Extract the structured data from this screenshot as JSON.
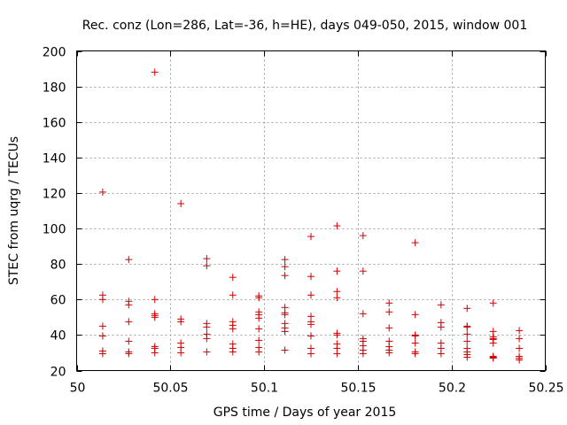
{
  "chart_data": {
    "type": "scatter",
    "title": "Rec. conz (Lon=286, Lat=-36, h=HE), days 049-050, 2015, window 001",
    "xlabel": "GPS time / Days of year 2015",
    "ylabel": "STEC from uqrg / TECUs",
    "xlim": [
      50,
      50.25
    ],
    "ylim": [
      20,
      200
    ],
    "xticks": [
      50,
      50.05,
      50.1,
      50.15,
      50.2,
      50.25
    ],
    "xtick_labels": [
      "50",
      "50.05",
      "50.1",
      "50.15",
      "50.2",
      "50.25"
    ],
    "yticks": [
      20,
      40,
      60,
      80,
      100,
      120,
      140,
      160,
      180,
      200
    ],
    "ytick_labels": [
      "20",
      "40",
      "60",
      "80",
      "100",
      "120",
      "140",
      "160",
      "180",
      "200"
    ],
    "grid": true,
    "marker": "plus",
    "color": "#cc0000",
    "series": [
      {
        "points": [
          [
            50.0139,
            120.5
          ],
          [
            50.0139,
            62.5
          ],
          [
            50.0139,
            60.0
          ],
          [
            50.0139,
            45.0
          ],
          [
            50.0139,
            39.5
          ],
          [
            50.0139,
            31.0
          ],
          [
            50.0139,
            29.5
          ],
          [
            50.0278,
            82.5
          ],
          [
            50.0278,
            59.0
          ],
          [
            50.0278,
            57.0
          ],
          [
            50.0278,
            47.5
          ],
          [
            50.0278,
            36.5
          ],
          [
            50.0278,
            30.5
          ],
          [
            50.0278,
            29.5
          ],
          [
            50.0417,
            188.0
          ],
          [
            50.0417,
            60.0
          ],
          [
            50.0417,
            52.0
          ],
          [
            50.0417,
            51.0
          ],
          [
            50.0417,
            50.0
          ],
          [
            50.0417,
            33.5
          ],
          [
            50.0417,
            32.5
          ],
          [
            50.0417,
            30.0
          ],
          [
            50.0556,
            114.0
          ],
          [
            50.0556,
            49.0
          ],
          [
            50.0556,
            47.5
          ],
          [
            50.0556,
            35.5
          ],
          [
            50.0556,
            33.0
          ],
          [
            50.0556,
            30.0
          ],
          [
            50.0694,
            83.0
          ],
          [
            50.0694,
            79.0
          ],
          [
            50.0694,
            46.5
          ],
          [
            50.0694,
            44.5
          ],
          [
            50.0694,
            40.5
          ],
          [
            50.0694,
            38.0
          ],
          [
            50.0694,
            30.5
          ],
          [
            50.0833,
            72.5
          ],
          [
            50.0833,
            62.5
          ],
          [
            50.0833,
            47.5
          ],
          [
            50.0833,
            45.5
          ],
          [
            50.0833,
            43.5
          ],
          [
            50.0833,
            35.0
          ],
          [
            50.0833,
            32.5
          ],
          [
            50.0833,
            30.5
          ],
          [
            50.0972,
            62.0
          ],
          [
            50.0972,
            61.0
          ],
          [
            50.0972,
            53.0
          ],
          [
            50.0972,
            51.5
          ],
          [
            50.0972,
            49.5
          ],
          [
            50.0972,
            43.5
          ],
          [
            50.0972,
            37.0
          ],
          [
            50.0972,
            33.0
          ],
          [
            50.0972,
            30.5
          ],
          [
            50.1111,
            82.5
          ],
          [
            50.1111,
            78.5
          ],
          [
            50.1111,
            73.5
          ],
          [
            50.1111,
            55.5
          ],
          [
            50.1111,
            52.5
          ],
          [
            50.1111,
            51.5
          ],
          [
            50.1111,
            46.5
          ],
          [
            50.1111,
            44.0
          ],
          [
            50.1111,
            42.0
          ],
          [
            50.1111,
            31.5
          ],
          [
            50.125,
            95.5
          ],
          [
            50.125,
            73.0
          ],
          [
            50.125,
            62.5
          ],
          [
            50.125,
            50.5
          ],
          [
            50.125,
            47.5
          ],
          [
            50.125,
            46.0
          ],
          [
            50.125,
            39.5
          ],
          [
            50.125,
            32.5
          ],
          [
            50.125,
            29.5
          ],
          [
            50.1389,
            101.5
          ],
          [
            50.1389,
            76.0
          ],
          [
            50.1389,
            64.5
          ],
          [
            50.1389,
            61.0
          ],
          [
            50.1389,
            41.0
          ],
          [
            50.1389,
            40.0
          ],
          [
            50.1389,
            35.0
          ],
          [
            50.1389,
            32.5
          ],
          [
            50.1389,
            29.5
          ],
          [
            50.1528,
            96.0
          ],
          [
            50.1528,
            76.0
          ],
          [
            50.1528,
            52.0
          ],
          [
            50.1528,
            38.0
          ],
          [
            50.1528,
            36.5
          ],
          [
            50.1528,
            34.0
          ],
          [
            50.1528,
            31.5
          ],
          [
            50.1528,
            29.5
          ],
          [
            50.1667,
            58.0
          ],
          [
            50.1667,
            53.0
          ],
          [
            50.1667,
            44.0
          ],
          [
            50.1667,
            36.5
          ],
          [
            50.1667,
            33.5
          ],
          [
            50.1667,
            31.5
          ],
          [
            50.1667,
            30.0
          ],
          [
            50.1806,
            92.0
          ],
          [
            50.1806,
            51.5
          ],
          [
            50.1806,
            40.0
          ],
          [
            50.1806,
            39.5
          ],
          [
            50.1806,
            35.5
          ],
          [
            50.1806,
            30.5
          ],
          [
            50.1806,
            29.5
          ],
          [
            50.1944,
            57.0
          ],
          [
            50.1944,
            47.0
          ],
          [
            50.1944,
            44.5
          ],
          [
            50.1944,
            35.5
          ],
          [
            50.1944,
            32.5
          ],
          [
            50.1944,
            29.5
          ],
          [
            50.2083,
            55.0
          ],
          [
            50.2083,
            45.0
          ],
          [
            50.2083,
            44.5
          ],
          [
            50.2083,
            40.5
          ],
          [
            50.2083,
            36.5
          ],
          [
            50.2083,
            32.5
          ],
          [
            50.2083,
            30.5
          ],
          [
            50.2083,
            29.0
          ],
          [
            50.2083,
            27.5
          ],
          [
            50.2222,
            58.0
          ],
          [
            50.2222,
            42.0
          ],
          [
            50.2222,
            39.0
          ],
          [
            50.2222,
            38.0
          ],
          [
            50.2222,
            37.5
          ],
          [
            50.2222,
            35.5
          ],
          [
            50.2222,
            28.0
          ],
          [
            50.2222,
            27.5
          ],
          [
            50.2222,
            27.0
          ],
          [
            50.2361,
            42.5
          ],
          [
            50.2361,
            38.0
          ],
          [
            50.2361,
            32.5
          ],
          [
            50.2361,
            28.0
          ],
          [
            50.2361,
            27.0
          ],
          [
            50.2361,
            26.0
          ]
        ]
      }
    ]
  }
}
